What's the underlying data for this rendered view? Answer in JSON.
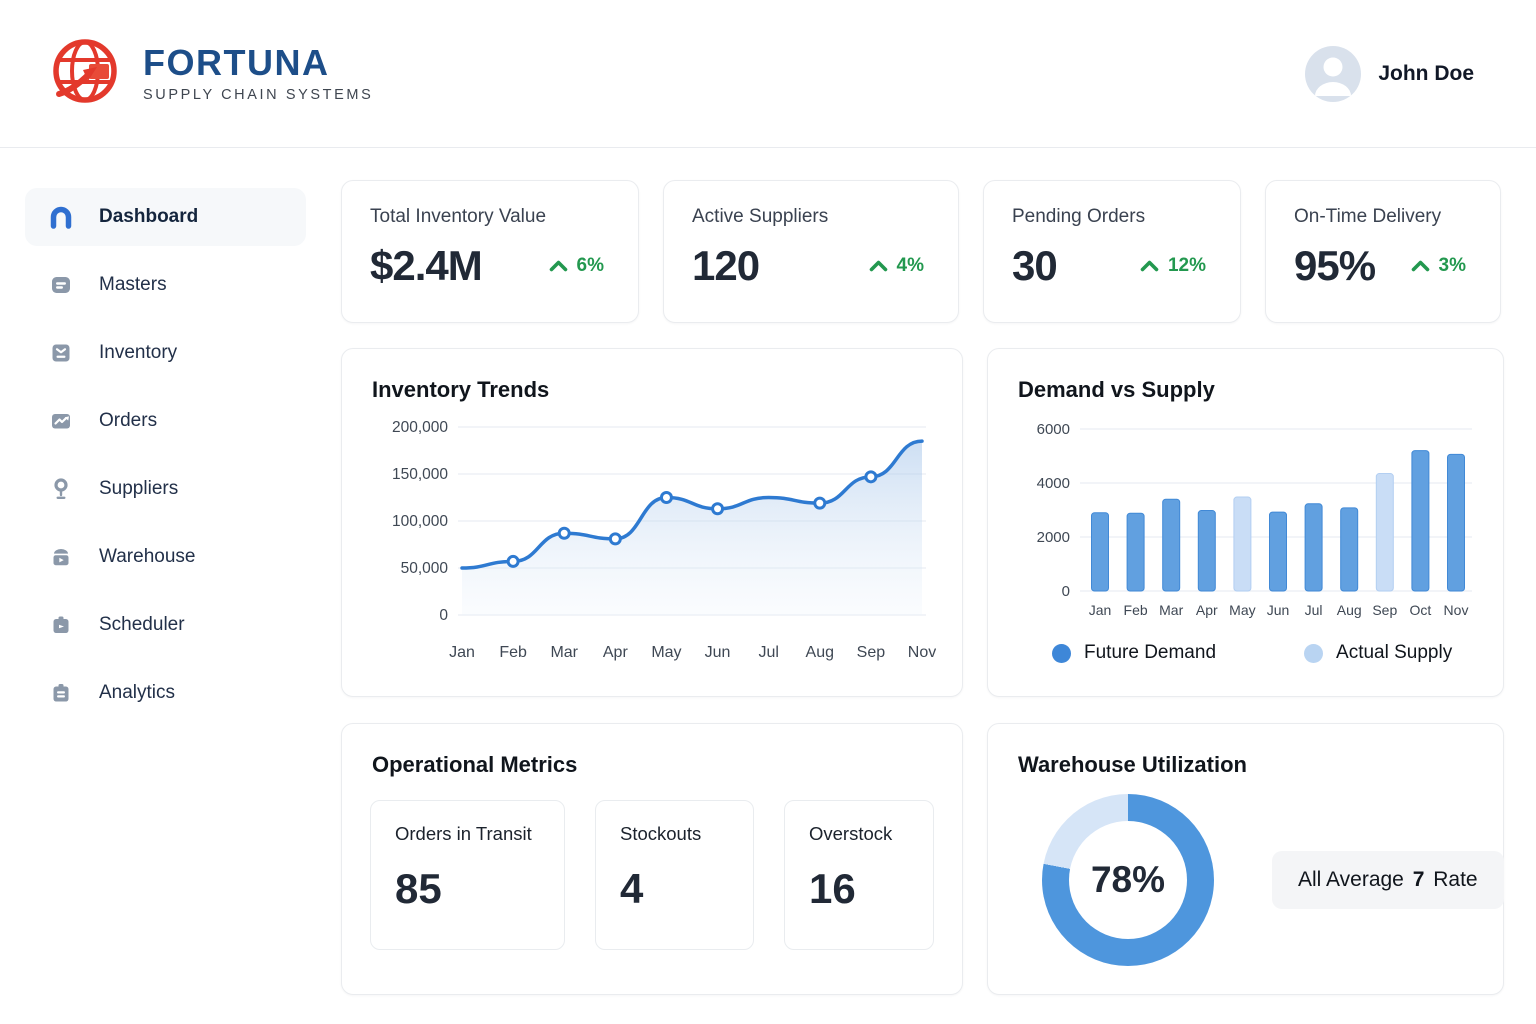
{
  "brand": {
    "name": "FORTUNA",
    "tagline": "SUPPLY CHAIN SYSTEMS"
  },
  "user": {
    "name": "John Doe"
  },
  "colors": {
    "brand_blue": "#1d4e89",
    "brand_red": "#e3392c",
    "active_nav_blue": "#2f6fd0",
    "icon_gray": "#8b98a9",
    "green": "#23984f",
    "line_blue": "#2e7ad1",
    "bar_demand": "#61a0e0",
    "bar_demand_stroke": "#4189d6",
    "bar_supply": "#c9ddf6",
    "bar_supply_stroke": "#b3cff2",
    "legend_demand": "#3e87d8",
    "legend_supply": "#b9d4f2",
    "donut_fill": "#4e96dd",
    "donut_track": "#d6e5f7"
  },
  "sidebar": {
    "items": [
      {
        "label": "Dashboard",
        "icon": "dashboard-icon",
        "active": true
      },
      {
        "label": "Masters",
        "icon": "masters-icon",
        "active": false
      },
      {
        "label": "Inventory",
        "icon": "inventory-icon",
        "active": false
      },
      {
        "label": "Orders",
        "icon": "orders-icon",
        "active": false
      },
      {
        "label": "Suppliers",
        "icon": "suppliers-icon",
        "active": false
      },
      {
        "label": "Warehouse",
        "icon": "warehouse-icon",
        "active": false
      },
      {
        "label": "Scheduler",
        "icon": "scheduler-icon",
        "active": false
      },
      {
        "label": "Analytics",
        "icon": "analytics-icon",
        "active": false
      }
    ]
  },
  "kpis": [
    {
      "label": "Total Inventory Value",
      "value": "$2.4M",
      "change": "6%",
      "trend": "up"
    },
    {
      "label": "Active Suppliers",
      "value": "120",
      "change": "4%",
      "trend": "up"
    },
    {
      "label": "Pending Orders",
      "value": "30",
      "change": "12%",
      "trend": "up"
    },
    {
      "label": "On-Time Delivery",
      "value": "95%",
      "change": "3%",
      "trend": "up"
    }
  ],
  "chart_data": [
    {
      "type": "line",
      "title": "Inventory Trends",
      "x": [
        "Jan",
        "Feb",
        "Mar",
        "Apr",
        "May",
        "Jun",
        "Jul",
        "Aug",
        "Sep",
        "Nov"
      ],
      "values": [
        50000,
        57000,
        87000,
        81000,
        125000,
        113000,
        125000,
        119000,
        147000,
        185000
      ],
      "marker_indices": [
        1,
        2,
        3,
        4,
        5,
        7,
        8
      ],
      "ylim": [
        0,
        200000
      ],
      "yticks": [
        0,
        50000,
        100000,
        150000,
        200000
      ],
      "ytick_labels": [
        "0",
        "50,000",
        "100,000",
        "150,000",
        "200,000"
      ],
      "grid": true,
      "area_fill": true
    },
    {
      "type": "bar",
      "title": "Demand vs Supply",
      "categories": [
        "Jan",
        "Feb",
        "Mar",
        "Apr",
        "May",
        "Jun",
        "Jul",
        "Aug",
        "Sep",
        "Oct",
        "Nov"
      ],
      "values": [
        2900,
        2880,
        3400,
        2980,
        3480,
        2920,
        3230,
        3080,
        4350,
        5200,
        5060
      ],
      "bar_series": [
        "demand",
        "demand",
        "demand",
        "demand",
        "supply",
        "demand",
        "demand",
        "demand",
        "supply",
        "demand",
        "demand"
      ],
      "ylim": [
        0,
        6000
      ],
      "yticks": [
        0,
        2000,
        4000,
        6000
      ],
      "ytick_labels": [
        "0",
        "2000",
        "4000",
        "6000"
      ],
      "grid": true,
      "legend_position": "bottom",
      "legend": [
        {
          "name": "Future Demand",
          "key": "demand"
        },
        {
          "name": "Actual Supply",
          "key": "supply"
        }
      ]
    },
    {
      "type": "donut",
      "title": "Warehouse Utilization",
      "value_pct": 78,
      "center_label": "78%",
      "note": {
        "prefix": "All Average",
        "bold": "7",
        "suffix": "Rate"
      }
    }
  ],
  "operational": {
    "title": "Operational Metrics",
    "metrics": [
      {
        "label": "Orders in Transit",
        "value": "85"
      },
      {
        "label": "Stockouts",
        "value": "4"
      },
      {
        "label": "Overstock",
        "value": "16"
      }
    ]
  }
}
